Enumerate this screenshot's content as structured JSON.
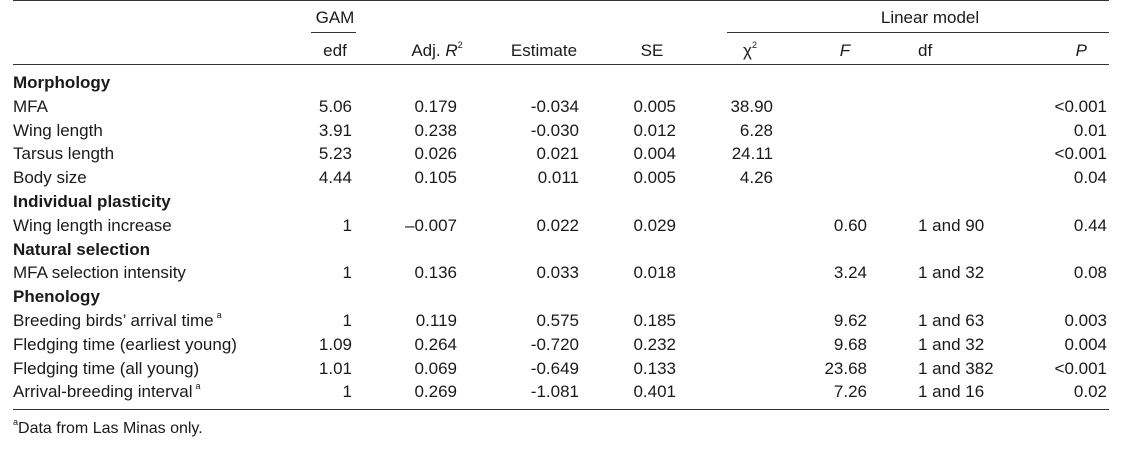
{
  "header": {
    "gam": "GAM",
    "linear_model": "Linear model",
    "cols": {
      "edf": "edf",
      "adj_r_prefix": "Adj. ",
      "adj_r_italic": "R",
      "adj_r_sup": "2",
      "estimate": "Estimate",
      "se": "SE",
      "chi": "χ",
      "chi_sup": "2",
      "f": "F",
      "df": "df",
      "p": "P"
    }
  },
  "sections": [
    {
      "title": "Morphology",
      "rows": [
        {
          "label": "MFA",
          "sup": "",
          "edf": "5.06",
          "adjr": "0.179",
          "est": "-0.034",
          "se": "0.005",
          "chi": "38.90",
          "f": "",
          "df": "",
          "p": "<0.001"
        },
        {
          "label": "Wing length",
          "sup": "",
          "edf": "3.91",
          "adjr": "0.238",
          "est": "-0.030",
          "se": "0.012",
          "chi": "6.28",
          "f": "",
          "df": "",
          "p": "0.01"
        },
        {
          "label": "Tarsus length",
          "sup": "",
          "edf": "5.23",
          "adjr": "0.026",
          "est": "0.021",
          "se": "0.004",
          "chi": "24.11",
          "f": "",
          "df": "",
          "p": "<0.001"
        },
        {
          "label": "Body size",
          "sup": "",
          "edf": "4.44",
          "adjr": "0.105",
          "est": "0.011",
          "se": "0.005",
          "chi": "4.26",
          "f": "",
          "df": "",
          "p": "0.04"
        }
      ]
    },
    {
      "title": "Individual plasticity",
      "rows": [
        {
          "label": "Wing length increase",
          "sup": "",
          "edf": "1",
          "adjr": "–0.007",
          "est": "0.022",
          "se": "0.029",
          "chi": "",
          "f": "0.60",
          "df": "1 and 90",
          "p": "0.44"
        }
      ]
    },
    {
      "title": "Natural selection",
      "rows": [
        {
          "label": "MFA selection intensity",
          "sup": "",
          "edf": "1",
          "adjr": "0.136",
          "est": "0.033",
          "se": "0.018",
          "chi": "",
          "f": "3.24",
          "df": "1 and 32",
          "p": "0.08"
        }
      ]
    },
    {
      "title": "Phenology",
      "rows": [
        {
          "label": "Breeding birds’ arrival time",
          "sup": "a",
          "edf": "1",
          "adjr": "0.119",
          "est": "0.575",
          "se": "0.185",
          "chi": "",
          "f": "9.62",
          "df": "1 and 63",
          "p": "0.003"
        },
        {
          "label": "Fledging time (earliest young)",
          "sup": "",
          "edf": "1.09",
          "adjr": "0.264",
          "est": "-0.720",
          "se": "0.232",
          "chi": "",
          "f": "9.68",
          "df": "1 and 32",
          "p": "0.004"
        },
        {
          "label": "Fledging time (all young)",
          "sup": "",
          "edf": "1.01",
          "adjr": "0.069",
          "est": "-0.649",
          "se": "0.133",
          "chi": "",
          "f": "23.68",
          "df": "1 and 382",
          "p": "<0.001"
        },
        {
          "label": "Arrival-breeding interval",
          "sup": "a",
          "edf": "1",
          "adjr": "0.269",
          "est": "-1.081",
          "se": "0.401",
          "chi": "",
          "f": "7.26",
          "df": "1 and 16",
          "p": "0.02"
        }
      ]
    }
  ],
  "footnote": {
    "sup": "a",
    "text": "Data from Las Minas only."
  }
}
